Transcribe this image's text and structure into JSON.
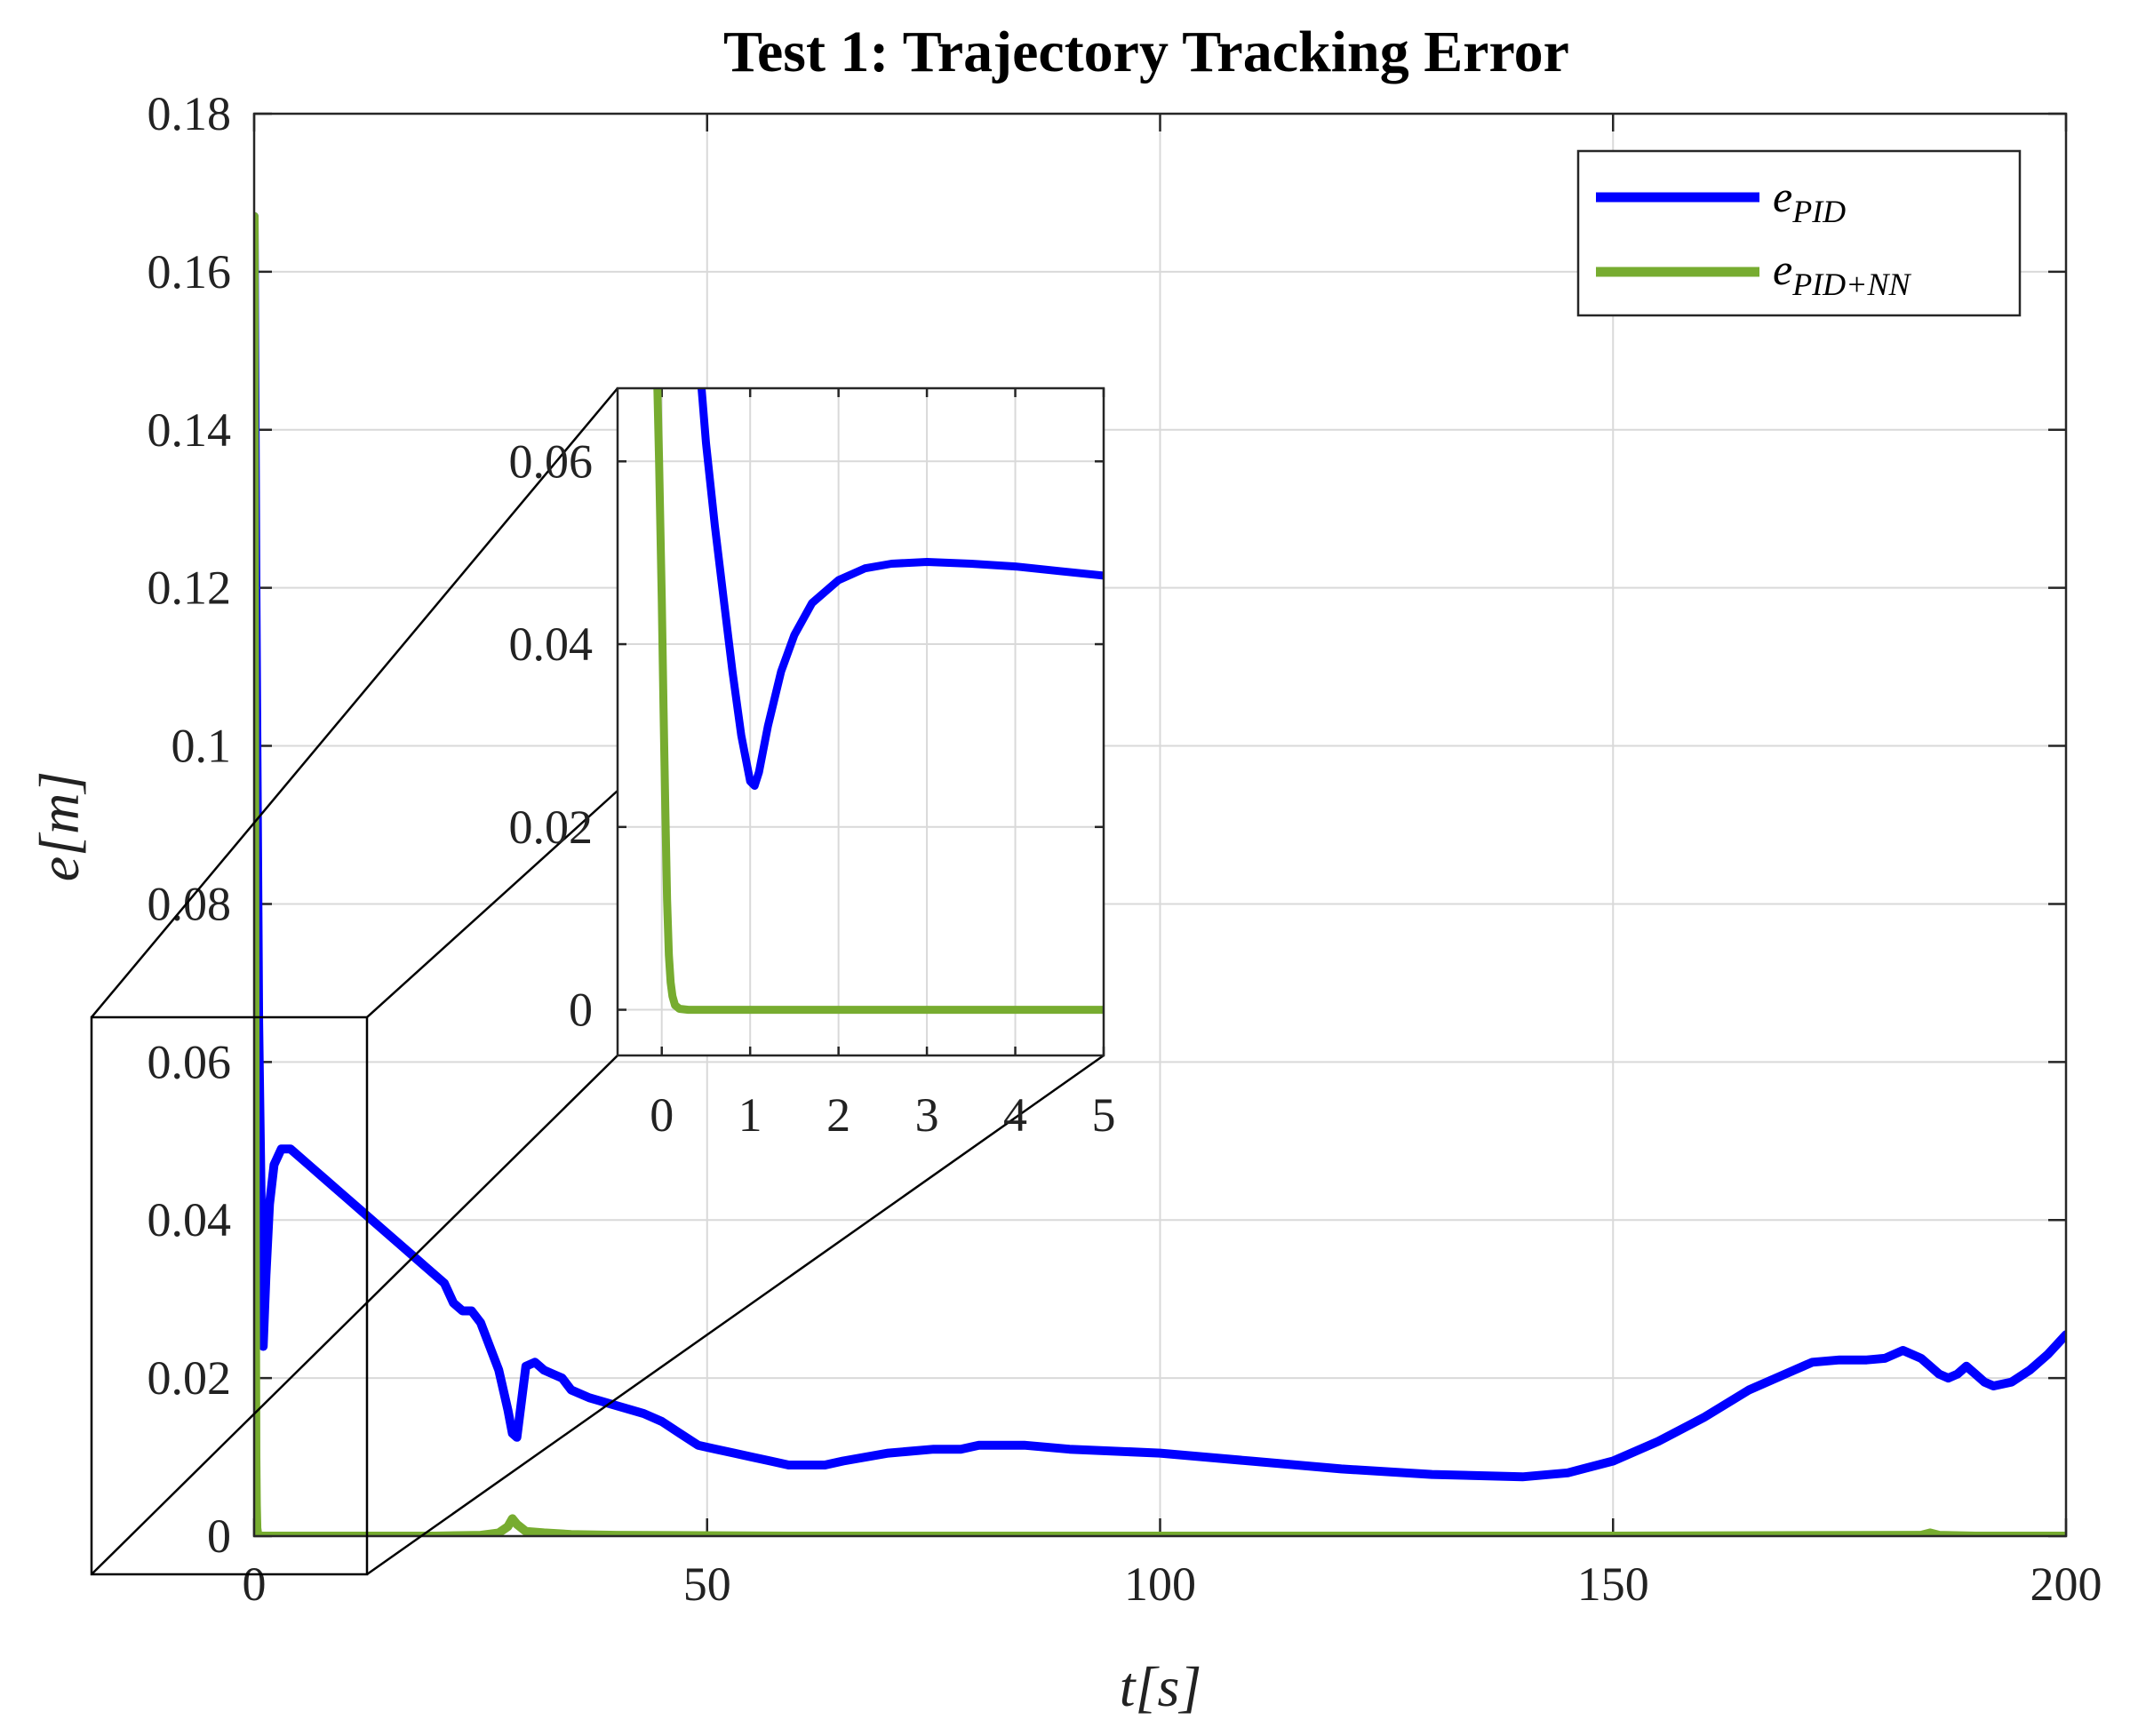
{
  "chart_data": [
    {
      "type": "line",
      "title": "Test 1: Trajectory Tracking Error",
      "xlabel": "t[s]",
      "ylabel": "e[m]",
      "xlim": [
        0,
        200
      ],
      "ylim": [
        0,
        0.18
      ],
      "xticks": [
        "0",
        "50",
        "100",
        "150",
        "200"
      ],
      "yticks": [
        "0",
        "0.02",
        "0.04",
        "0.06",
        "0.08",
        "0.1",
        "0.12",
        "0.14",
        "0.16",
        "0.18"
      ],
      "grid": true,
      "legend_position": "top-right",
      "legend": [
        {
          "base": "e",
          "sub": "PID"
        },
        {
          "base": "e",
          "sub": "PID+NN"
        }
      ],
      "series": [
        {
          "name": "e_PID",
          "color": "#0000ff",
          "x": [
            0,
            0.2,
            0.5,
            0.8,
            1.0,
            1.3,
            1.7,
            2.2,
            3.0,
            4.0,
            6,
            8,
            10,
            12,
            14,
            16,
            18,
            19,
            20,
            21,
            22,
            23,
            24,
            25,
            26,
            27,
            28,
            28.5,
            29,
            30,
            31,
            32,
            33,
            34,
            35,
            37,
            40,
            43,
            45,
            47,
            49,
            51,
            53,
            55,
            57,
            59,
            61,
            63,
            65,
            70,
            75,
            78,
            80,
            85,
            90,
            100,
            110,
            120,
            130,
            140,
            145,
            150,
            155,
            160,
            165,
            170,
            172,
            175,
            178,
            180,
            182,
            184,
            186,
            187,
            188,
            189,
            190,
            191,
            192,
            194,
            196,
            198,
            200
          ],
          "y": [
            0.167,
            0.12,
            0.065,
            0.04,
            0.024,
            0.033,
            0.042,
            0.047,
            0.049,
            0.049,
            0.047,
            0.045,
            0.043,
            0.041,
            0.039,
            0.037,
            0.035,
            0.034,
            0.033,
            0.032,
            0.0295,
            0.0285,
            0.0285,
            0.027,
            0.024,
            0.021,
            0.016,
            0.013,
            0.0125,
            0.0215,
            0.022,
            0.021,
            0.0205,
            0.02,
            0.0185,
            0.0175,
            0.0165,
            0.0155,
            0.0145,
            0.013,
            0.0115,
            0.011,
            0.0105,
            0.01,
            0.0095,
            0.009,
            0.009,
            0.009,
            0.0095,
            0.0105,
            0.011,
            0.011,
            0.0115,
            0.0115,
            0.011,
            0.0105,
            0.0095,
            0.0085,
            0.0078,
            0.0075,
            0.008,
            0.0095,
            0.012,
            0.015,
            0.0185,
            0.021,
            0.022,
            0.0223,
            0.0223,
            0.0225,
            0.0235,
            0.0225,
            0.0205,
            0.02,
            0.0205,
            0.0215,
            0.0205,
            0.0195,
            0.019,
            0.0195,
            0.021,
            0.023,
            0.0255
          ]
        },
        {
          "name": "e_PID+NN",
          "color": "#77ac30",
          "x": [
            0,
            0.05,
            0.1,
            0.15,
            0.2,
            0.25,
            0.3,
            0.4,
            0.5,
            1,
            5,
            10,
            20,
            25,
            27,
            28,
            28.5,
            29,
            30,
            32,
            35,
            40,
            60,
            100,
            150,
            184,
            185,
            186,
            190,
            200
          ],
          "y": [
            0.167,
            0.11,
            0.066,
            0.03,
            0.01,
            0.004,
            0.001,
            0.0002,
            0.0,
            0.0,
            0.0,
            0.0,
            0.0,
            0.0001,
            0.0004,
            0.0012,
            0.0022,
            0.0015,
            0.0006,
            0.0004,
            0.0002,
            0.0001,
            0.0,
            0.0,
            0.0,
            0.0001,
            0.0004,
            0.0001,
            0.0,
            0.0
          ]
        }
      ]
    },
    {
      "type": "line",
      "xlim": [
        -0.5,
        5
      ],
      "ylim": [
        -0.005,
        0.068
      ],
      "xticks": [
        "0",
        "1",
        "2",
        "3",
        "4",
        "5"
      ],
      "yticks": [
        "0",
        "0.02",
        "0.04",
        "0.06"
      ],
      "zoom_of": "region near t = 0 of the main plot",
      "series": [
        {
          "name": "e_PID",
          "color": "#0000ff",
          "x": [
            0.45,
            0.5,
            0.6,
            0.7,
            0.8,
            0.9,
            1.0,
            1.05,
            1.1,
            1.2,
            1.35,
            1.5,
            1.7,
            2.0,
            2.3,
            2.6,
            3.0,
            3.5,
            4.0,
            4.5,
            5.0
          ],
          "y": [
            0.068,
            0.062,
            0.053,
            0.045,
            0.037,
            0.03,
            0.025,
            0.0245,
            0.026,
            0.031,
            0.037,
            0.041,
            0.0445,
            0.047,
            0.0483,
            0.0488,
            0.049,
            0.0488,
            0.0485,
            0.048,
            0.0475
          ]
        },
        {
          "name": "e_PID+NN",
          "color": "#77ac30",
          "x": [
            -0.05,
            -0.03,
            0.0,
            0.02,
            0.04,
            0.06,
            0.08,
            0.1,
            0.12,
            0.15,
            0.2,
            0.3,
            1.0,
            2.0,
            3.0,
            4.0,
            5.0
          ],
          "y": [
            0.068,
            0.06,
            0.045,
            0.033,
            0.022,
            0.012,
            0.006,
            0.003,
            0.0015,
            0.0005,
            0.0001,
            0.0,
            0.0,
            0.0,
            0.0,
            0.0,
            0.0
          ]
        }
      ]
    }
  ]
}
